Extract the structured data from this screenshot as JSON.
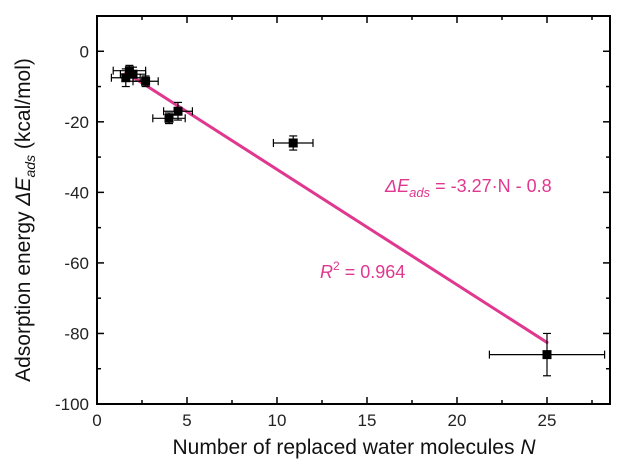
{
  "chart_data": {
    "type": "scatter",
    "title": "",
    "xlabel": {
      "prefix": "Number of replaced water molecules ",
      "symbol": "N"
    },
    "ylabel": {
      "prefix": "Adsorption energy ",
      "symbol": "ΔE",
      "subscript": "ads",
      "units": " (kcal/mol)"
    },
    "xlim": [
      0,
      28.5
    ],
    "ylim": [
      -100,
      10
    ],
    "xticks": [
      0,
      5,
      10,
      15,
      20,
      25
    ],
    "yticks": [
      0,
      -20,
      -40,
      -60,
      -80,
      -100
    ],
    "grid": false,
    "legend": "none",
    "series": [
      {
        "points": [
          {
            "x": 1.6,
            "y": -7.5,
            "xerr": 0.8,
            "yerr": 2.5
          },
          {
            "x": 1.8,
            "y": -5.5,
            "xerr": 0.9,
            "yerr": 1.5
          },
          {
            "x": 2.0,
            "y": -6.5,
            "xerr": 0.7,
            "yerr": 2.0
          },
          {
            "x": 2.7,
            "y": -8.5,
            "xerr": 0.7,
            "yerr": 1.5
          },
          {
            "x": 4.0,
            "y": -19.0,
            "xerr": 0.9,
            "yerr": 1.5
          },
          {
            "x": 4.5,
            "y": -17.0,
            "xerr": 0.8,
            "yerr": 2.5
          },
          {
            "x": 10.9,
            "y": -26.0,
            "xerr": 1.1,
            "yerr": 2.0
          },
          {
            "x": 25.0,
            "y": -86.0,
            "xerr": 3.2,
            "yerr": 6.0
          }
        ]
      }
    ],
    "fit": {
      "slope": -3.27,
      "intercept": -0.8,
      "x_range": [
        1.6,
        25.0
      ],
      "color": "#e0388f",
      "equation": {
        "lhs_symbol": "ΔE",
        "lhs_subscript": "ads",
        "rhs": " = -3.27·N - 0.8"
      },
      "r2": {
        "symbol": "R",
        "superscript": "2",
        "value": " = 0.964"
      }
    },
    "colors": {
      "marker": "#000000",
      "axis": "#000000",
      "fit_line": "#e0388f"
    }
  }
}
